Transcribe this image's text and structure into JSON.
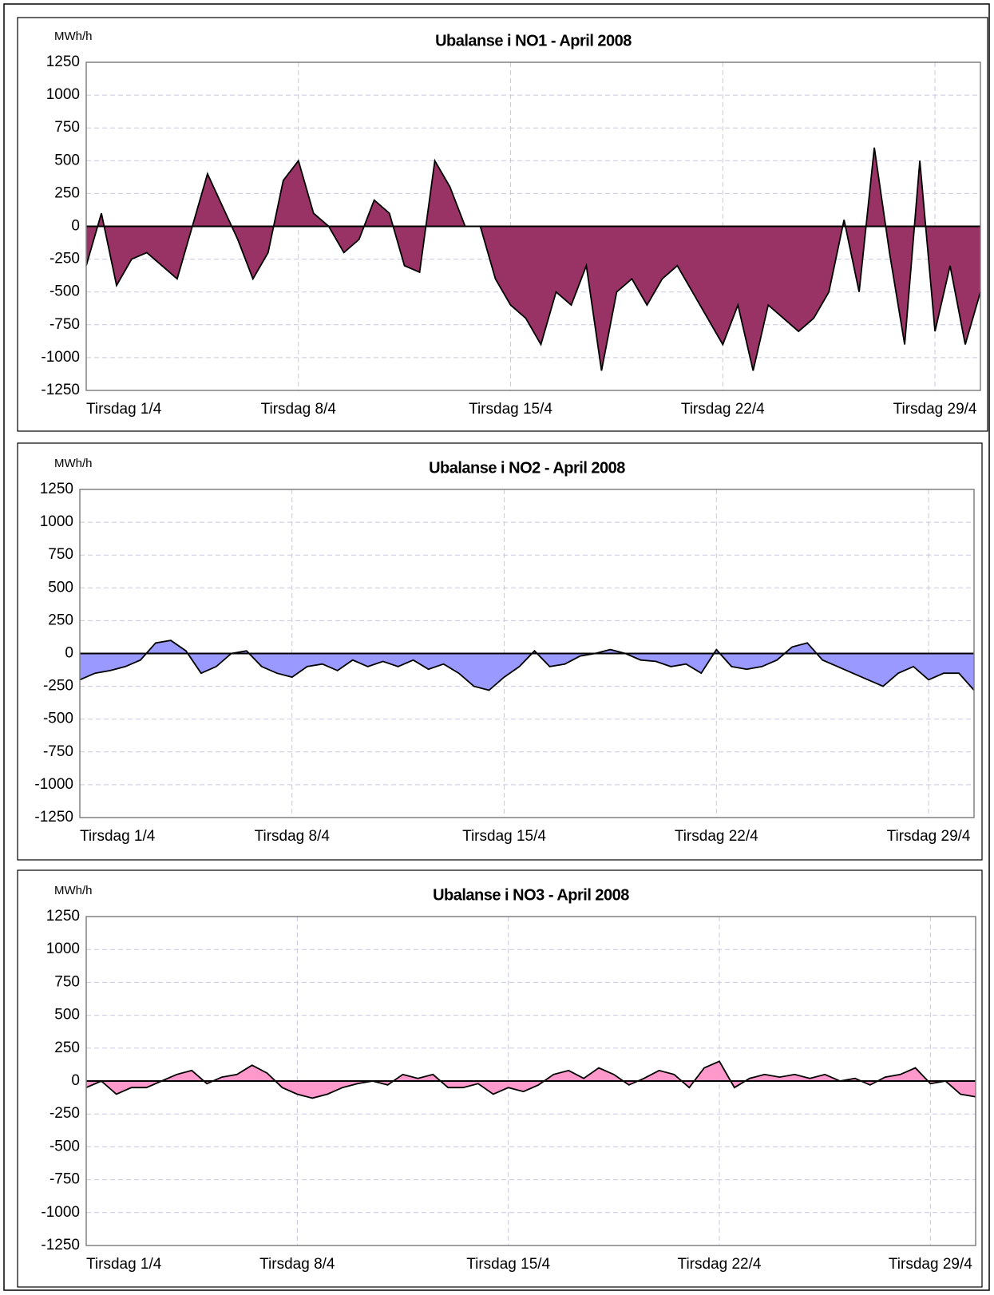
{
  "chart_data": [
    {
      "type": "area",
      "title": "Ubalanse i NO1 - April 2008",
      "y_label": "MWh/h",
      "color": "#993366",
      "grid": true,
      "ylim": [
        -1250,
        1250
      ],
      "yticks": [
        -1250,
        -1000,
        -750,
        -500,
        -250,
        0,
        250,
        500,
        750,
        1000,
        1250
      ],
      "categories": [
        "Tirsdag 1/4",
        null,
        null,
        null,
        null,
        null,
        null,
        null,
        null,
        null,
        null,
        null,
        null,
        null,
        "Tirsdag 8/4",
        null,
        null,
        null,
        null,
        null,
        null,
        null,
        null,
        null,
        null,
        null,
        null,
        null,
        "Tirsdag 15/4",
        null,
        null,
        null,
        null,
        null,
        null,
        null,
        null,
        null,
        null,
        null,
        null,
        null,
        "Tirsdag 22/4",
        null,
        null,
        null,
        null,
        null,
        null,
        null,
        null,
        null,
        null,
        null,
        null,
        null,
        "Tirsdag 29/4",
        null,
        null,
        null
      ],
      "values": [
        -300,
        100,
        -450,
        -250,
        -200,
        -300,
        -400,
        0,
        400,
        150,
        -100,
        -400,
        -200,
        350,
        500,
        100,
        0,
        -200,
        -100,
        200,
        100,
        -300,
        -350,
        500,
        300,
        0,
        0,
        -400,
        -600,
        -700,
        -900,
        -500,
        -600,
        -300,
        -1100,
        -500,
        -400,
        -600,
        -400,
        -300,
        -500,
        -700,
        -900,
        -600,
        -1100,
        -600,
        -700,
        -800,
        -700,
        -500,
        50,
        -500,
        600,
        -200,
        -900,
        500,
        -800,
        -300,
        -900,
        -500
      ]
    },
    {
      "type": "area",
      "title": "Ubalanse i NO2 - April 2008",
      "y_label": "MWh/h",
      "color": "#9999ff",
      "grid": true,
      "ylim": [
        -1250,
        1250
      ],
      "yticks": [
        -1250,
        -1000,
        -750,
        -500,
        -250,
        0,
        250,
        500,
        750,
        1000,
        1250
      ],
      "categories": [
        "Tirsdag 1/4",
        null,
        null,
        null,
        null,
        null,
        null,
        null,
        null,
        null,
        null,
        null,
        null,
        null,
        "Tirsdag 8/4",
        null,
        null,
        null,
        null,
        null,
        null,
        null,
        null,
        null,
        null,
        null,
        null,
        null,
        "Tirsdag 15/4",
        null,
        null,
        null,
        null,
        null,
        null,
        null,
        null,
        null,
        null,
        null,
        null,
        null,
        "Tirsdag 22/4",
        null,
        null,
        null,
        null,
        null,
        null,
        null,
        null,
        null,
        null,
        null,
        null,
        null,
        "Tirsdag 29/4",
        null,
        null,
        null
      ],
      "values": [
        -200,
        -150,
        -130,
        -100,
        -50,
        80,
        100,
        20,
        -150,
        -100,
        0,
        20,
        -100,
        -150,
        -180,
        -100,
        -80,
        -130,
        -50,
        -100,
        -60,
        -100,
        -50,
        -120,
        -80,
        -150,
        -250,
        -280,
        -180,
        -100,
        20,
        -100,
        -80,
        -20,
        0,
        30,
        0,
        -50,
        -60,
        -100,
        -80,
        -150,
        30,
        -100,
        -120,
        -100,
        -50,
        50,
        80,
        -50,
        -100,
        -150,
        -200,
        -250,
        -150,
        -100,
        -200,
        -150,
        -150,
        -280
      ]
    },
    {
      "type": "area",
      "title": "Ubalanse i NO3 - April 2008",
      "y_label": "MWh/h",
      "color": "#ff99cc",
      "grid": true,
      "ylim": [
        -1250,
        1250
      ],
      "yticks": [
        -1250,
        -1000,
        -750,
        -500,
        -250,
        0,
        250,
        500,
        750,
        1000,
        1250
      ],
      "categories": [
        "Tirsdag 1/4",
        null,
        null,
        null,
        null,
        null,
        null,
        null,
        null,
        null,
        null,
        null,
        null,
        null,
        "Tirsdag 8/4",
        null,
        null,
        null,
        null,
        null,
        null,
        null,
        null,
        null,
        null,
        null,
        null,
        null,
        "Tirsdag 15/4",
        null,
        null,
        null,
        null,
        null,
        null,
        null,
        null,
        null,
        null,
        null,
        null,
        null,
        "Tirsdag 22/4",
        null,
        null,
        null,
        null,
        null,
        null,
        null,
        null,
        null,
        null,
        null,
        null,
        null,
        "Tirsdag 29/4",
        null,
        null,
        null
      ],
      "values": [
        -50,
        0,
        -100,
        -50,
        -50,
        0,
        50,
        80,
        -20,
        30,
        50,
        120,
        60,
        -50,
        -100,
        -130,
        -100,
        -50,
        -20,
        0,
        -30,
        50,
        20,
        50,
        -50,
        -50,
        -20,
        -100,
        -50,
        -80,
        -30,
        50,
        80,
        20,
        100,
        50,
        -30,
        20,
        80,
        50,
        -50,
        100,
        150,
        -50,
        20,
        50,
        30,
        50,
        20,
        50,
        0,
        20,
        -30,
        30,
        50,
        100,
        -20,
        0,
        -100,
        -120
      ]
    }
  ]
}
